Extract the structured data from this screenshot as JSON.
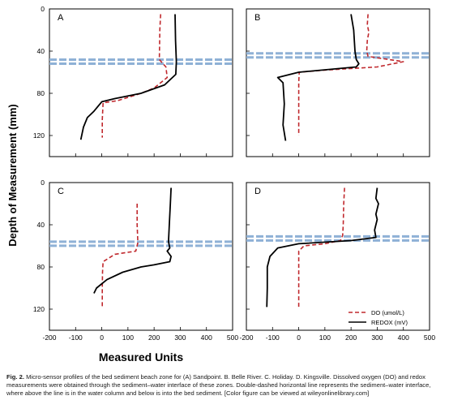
{
  "figure": {
    "y_axis_label": "Depth of Measurement (mm)",
    "x_axis_label": "Measured Units",
    "legend": [
      {
        "name": "DO (umol/L)",
        "color": "#c0282d",
        "style": "dashed"
      },
      {
        "name": "REDOX (mV)",
        "color": "#000000",
        "style": "solid"
      }
    ],
    "caption_label": "Fig. 2.",
    "caption_text": "Micro-sensor profiles of the bed sediment beach zone for (A) Sandpoint. B. Belle River. C. Holiday. D. Kingsville. Dissolved oxygen (DO) and redox measurements were obtained through the sediment–water interface of these zones. Double-dashed horizontal line represents the sediment–water interface, where above the line is in the water column and below is into the bed sediment. [Color figure can be viewed at wileyonlinelibrary.com]"
  },
  "colors": {
    "do": "#c0282d",
    "redox": "#000000",
    "interface": "#8fb1d6"
  },
  "chart_data": [
    {
      "type": "line",
      "panel": "A",
      "xlim": [
        -200,
        500
      ],
      "ylim": [
        0,
        140
      ],
      "y_inverted": true,
      "xticks": [
        -200,
        -100,
        0,
        100,
        200,
        300,
        400,
        500
      ],
      "yticks": [
        0,
        40,
        80,
        120
      ],
      "interface_depth": 50,
      "series": [
        {
          "name": "DO (umol/L)",
          "x": [
            225,
            222,
            220,
            245,
            250,
            200,
            150,
            60,
            5,
            2,
            2
          ],
          "y": [
            5,
            20,
            48,
            55,
            65,
            75,
            80,
            87,
            89,
            105,
            122
          ]
        },
        {
          "name": "REDOX (mV)",
          "x": [
            280,
            282,
            285,
            283,
            240,
            150,
            50,
            0,
            -30,
            -55,
            -70,
            -80
          ],
          "y": [
            5,
            30,
            50,
            62,
            72,
            80,
            85,
            88,
            97,
            103,
            112,
            124
          ]
        }
      ]
    },
    {
      "type": "line",
      "panel": "B",
      "xlim": [
        -200,
        500
      ],
      "ylim": [
        0,
        140
      ],
      "y_inverted": true,
      "xticks": [
        -200,
        -100,
        0,
        100,
        200,
        300,
        400,
        500
      ],
      "yticks": [
        0,
        40,
        80,
        120
      ],
      "interface_depth": 44,
      "series": [
        {
          "name": "DO (umol/L)",
          "x": [
            265,
            262,
            268,
            262,
            260,
            265,
            400,
            300,
            100,
            2,
            0,
            0,
            0
          ],
          "y": [
            5,
            15,
            22,
            30,
            40,
            45,
            50,
            55,
            58,
            60,
            70,
            90,
            120
          ]
        },
        {
          "name": "REDOX (mV)",
          "x": [
            200,
            210,
            215,
            220,
            230,
            220,
            0,
            -80,
            -60,
            -55,
            -60,
            -50
          ],
          "y": [
            5,
            20,
            40,
            48,
            52,
            55,
            60,
            65,
            70,
            90,
            110,
            125
          ]
        }
      ]
    },
    {
      "type": "line",
      "panel": "C",
      "xlim": [
        -200,
        500
      ],
      "ylim": [
        0,
        140
      ],
      "y_inverted": true,
      "xticks": [
        -200,
        -100,
        0,
        100,
        200,
        300,
        400,
        500
      ],
      "yticks": [
        0,
        40,
        80,
        120
      ],
      "interface_depth": 58,
      "series": [
        {
          "name": "DO (umol/L)",
          "x": [
            135,
            135,
            138,
            130,
            50,
            5,
            3,
            2,
            2
          ],
          "y": [
            20,
            40,
            57,
            65,
            68,
            75,
            85,
            100,
            118
          ]
        },
        {
          "name": "REDOX (mV)",
          "x": [
            265,
            262,
            258,
            255,
            260,
            250,
            265,
            260,
            200,
            150,
            80,
            20,
            -20,
            -30
          ],
          "y": [
            5,
            20,
            40,
            56,
            62,
            65,
            70,
            75,
            78,
            80,
            85,
            92,
            100,
            105
          ]
        }
      ]
    },
    {
      "type": "line",
      "panel": "D",
      "xlim": [
        -200,
        500
      ],
      "ylim": [
        0,
        140
      ],
      "y_inverted": true,
      "xticks": [
        -200,
        -100,
        0,
        100,
        200,
        300,
        400,
        500
      ],
      "yticks": [
        0,
        40,
        80,
        120
      ],
      "interface_depth": 53,
      "series": [
        {
          "name": "DO (umol/L)",
          "x": [
            175,
            172,
            170,
            168,
            160,
            100,
            20,
            0,
            0,
            0
          ],
          "y": [
            5,
            20,
            40,
            50,
            55,
            58,
            60,
            65,
            90,
            120
          ]
        },
        {
          "name": "REDOX (mV)",
          "x": [
            300,
            295,
            305,
            295,
            300,
            290,
            295,
            200,
            0,
            -80,
            -110,
            -120,
            -120,
            -122
          ],
          "y": [
            5,
            15,
            20,
            30,
            35,
            45,
            52,
            55,
            58,
            62,
            70,
            80,
            100,
            118
          ]
        }
      ]
    }
  ]
}
